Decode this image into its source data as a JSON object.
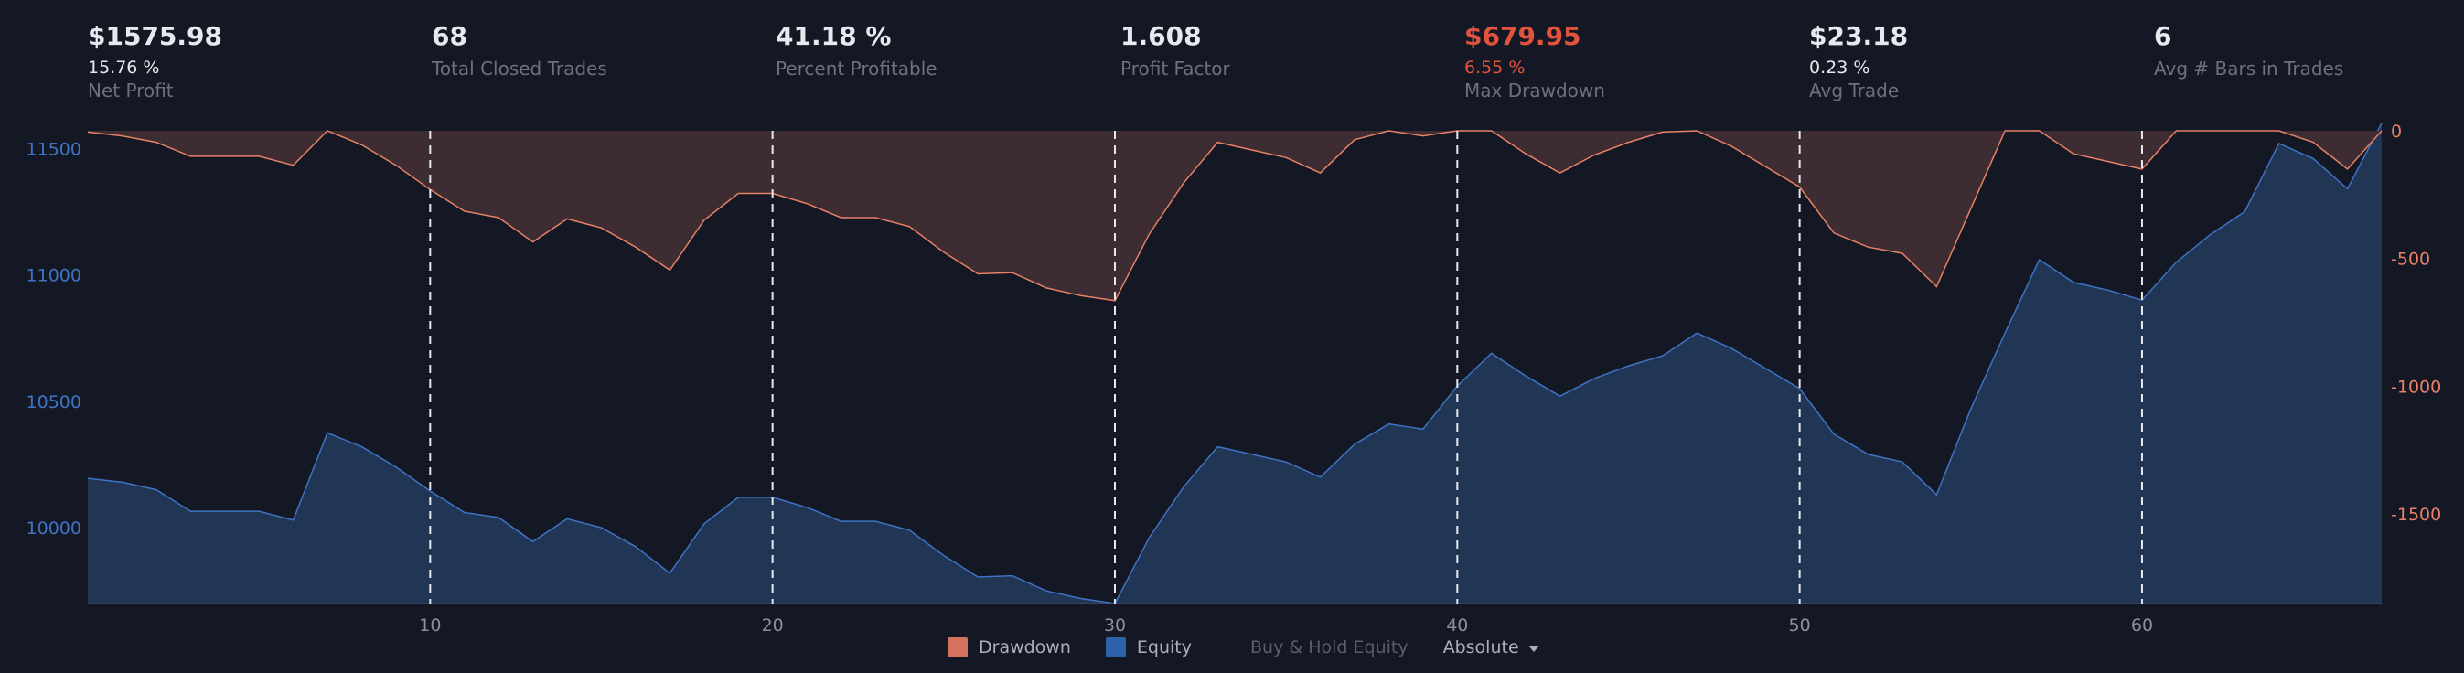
{
  "stats": [
    {
      "value": "$1575.98",
      "sub": "15.76 %",
      "label": "Net Profit",
      "highlight": false
    },
    {
      "value": "68",
      "sub": "",
      "label": "Total Closed Trades",
      "highlight": false
    },
    {
      "value": "41.18 %",
      "sub": "",
      "label": "Percent Profitable",
      "highlight": false
    },
    {
      "value": "1.608",
      "sub": "",
      "label": "Profit Factor",
      "highlight": false
    },
    {
      "value": "$679.95",
      "sub": "6.55 %",
      "label": "Max Drawdown",
      "highlight": true
    },
    {
      "value": "$23.18",
      "sub": "0.23 %",
      "label": "Avg Trade",
      "highlight": false
    },
    {
      "value": "6",
      "sub": "",
      "label": "Avg # Bars in Trades",
      "highlight": false
    }
  ],
  "legend": {
    "drawdown": "Drawdown",
    "equity": "Equity",
    "buy_hold": "Buy & Hold Equity",
    "mode": "Absolute"
  },
  "chart_data": {
    "type": "area",
    "x": [
      1,
      2,
      3,
      4,
      5,
      6,
      7,
      8,
      9,
      10,
      11,
      12,
      13,
      14,
      15,
      16,
      17,
      18,
      19,
      20,
      21,
      22,
      23,
      24,
      25,
      26,
      27,
      28,
      29,
      30,
      31,
      32,
      33,
      34,
      35,
      36,
      37,
      38,
      39,
      40,
      41,
      42,
      43,
      44,
      45,
      46,
      47,
      48,
      49,
      50,
      51,
      52,
      53,
      54,
      55,
      56,
      57,
      58,
      59,
      60,
      61,
      62,
      63,
      64,
      65,
      66,
      67,
      68
    ],
    "x_ticks": [
      10,
      20,
      30,
      40,
      50,
      60
    ],
    "xlim": [
      0,
      67
    ],
    "series": [
      {
        "name": "Equity",
        "axis": "left",
        "color": "#3d74c4",
        "fill": "#213555",
        "values": [
          10195,
          10180,
          10150,
          10065,
          10065,
          10065,
          10030,
          10375,
          10320,
          10240,
          10145,
          10060,
          10040,
          9945,
          10035,
          10000,
          9925,
          9820,
          10015,
          10120,
          10120,
          10080,
          10025,
          10025,
          9990,
          9890,
          9805,
          9810,
          9750,
          9720,
          9700,
          9960,
          10160,
          10320,
          10290,
          10260,
          10200,
          10330,
          10410,
          10390,
          10560,
          10690,
          10600,
          10520,
          10590,
          10640,
          10680,
          10770,
          10710,
          10630,
          10550,
          10370,
          10290,
          10260,
          10130,
          10470,
          10770,
          11060,
          10970,
          10940,
          10900,
          11050,
          11160,
          11250,
          11520,
          11460,
          11340,
          11600
        ]
      },
      {
        "name": "Drawdown",
        "axis": "right",
        "color": "#e88066",
        "fill": "#3d2c31",
        "values": [
          -5,
          -20,
          -45,
          -100,
          -100,
          -100,
          -135,
          0,
          -55,
          -135,
          -230,
          -315,
          -340,
          -435,
          -345,
          -380,
          -455,
          -545,
          -350,
          -245,
          -245,
          -285,
          -340,
          -340,
          -375,
          -475,
          -560,
          -555,
          -615,
          -645,
          -665,
          -405,
          -205,
          -45,
          -75,
          -105,
          -165,
          -35,
          0,
          -20,
          0,
          0,
          -90,
          -165,
          -95,
          -45,
          -5,
          0,
          -60,
          -140,
          -220,
          -400,
          -455,
          -480,
          -610,
          -305,
          0,
          0,
          -90,
          -120,
          -150,
          0,
          0,
          0,
          0,
          -45,
          -150,
          0
        ]
      }
    ],
    "left_axis": {
      "ticks": [
        10000,
        10500,
        11000,
        11500
      ],
      "range": [
        9700,
        11570
      ],
      "color": "#3d74c4"
    },
    "right_axis": {
      "ticks": [
        0,
        -500,
        -1000,
        -1500
      ],
      "range": [
        -1850,
        0
      ],
      "color": "#e88066"
    },
    "grid": false,
    "vertical_markers": [
      10,
      20,
      30,
      40,
      50,
      60
    ],
    "legend_position": "bottom"
  }
}
